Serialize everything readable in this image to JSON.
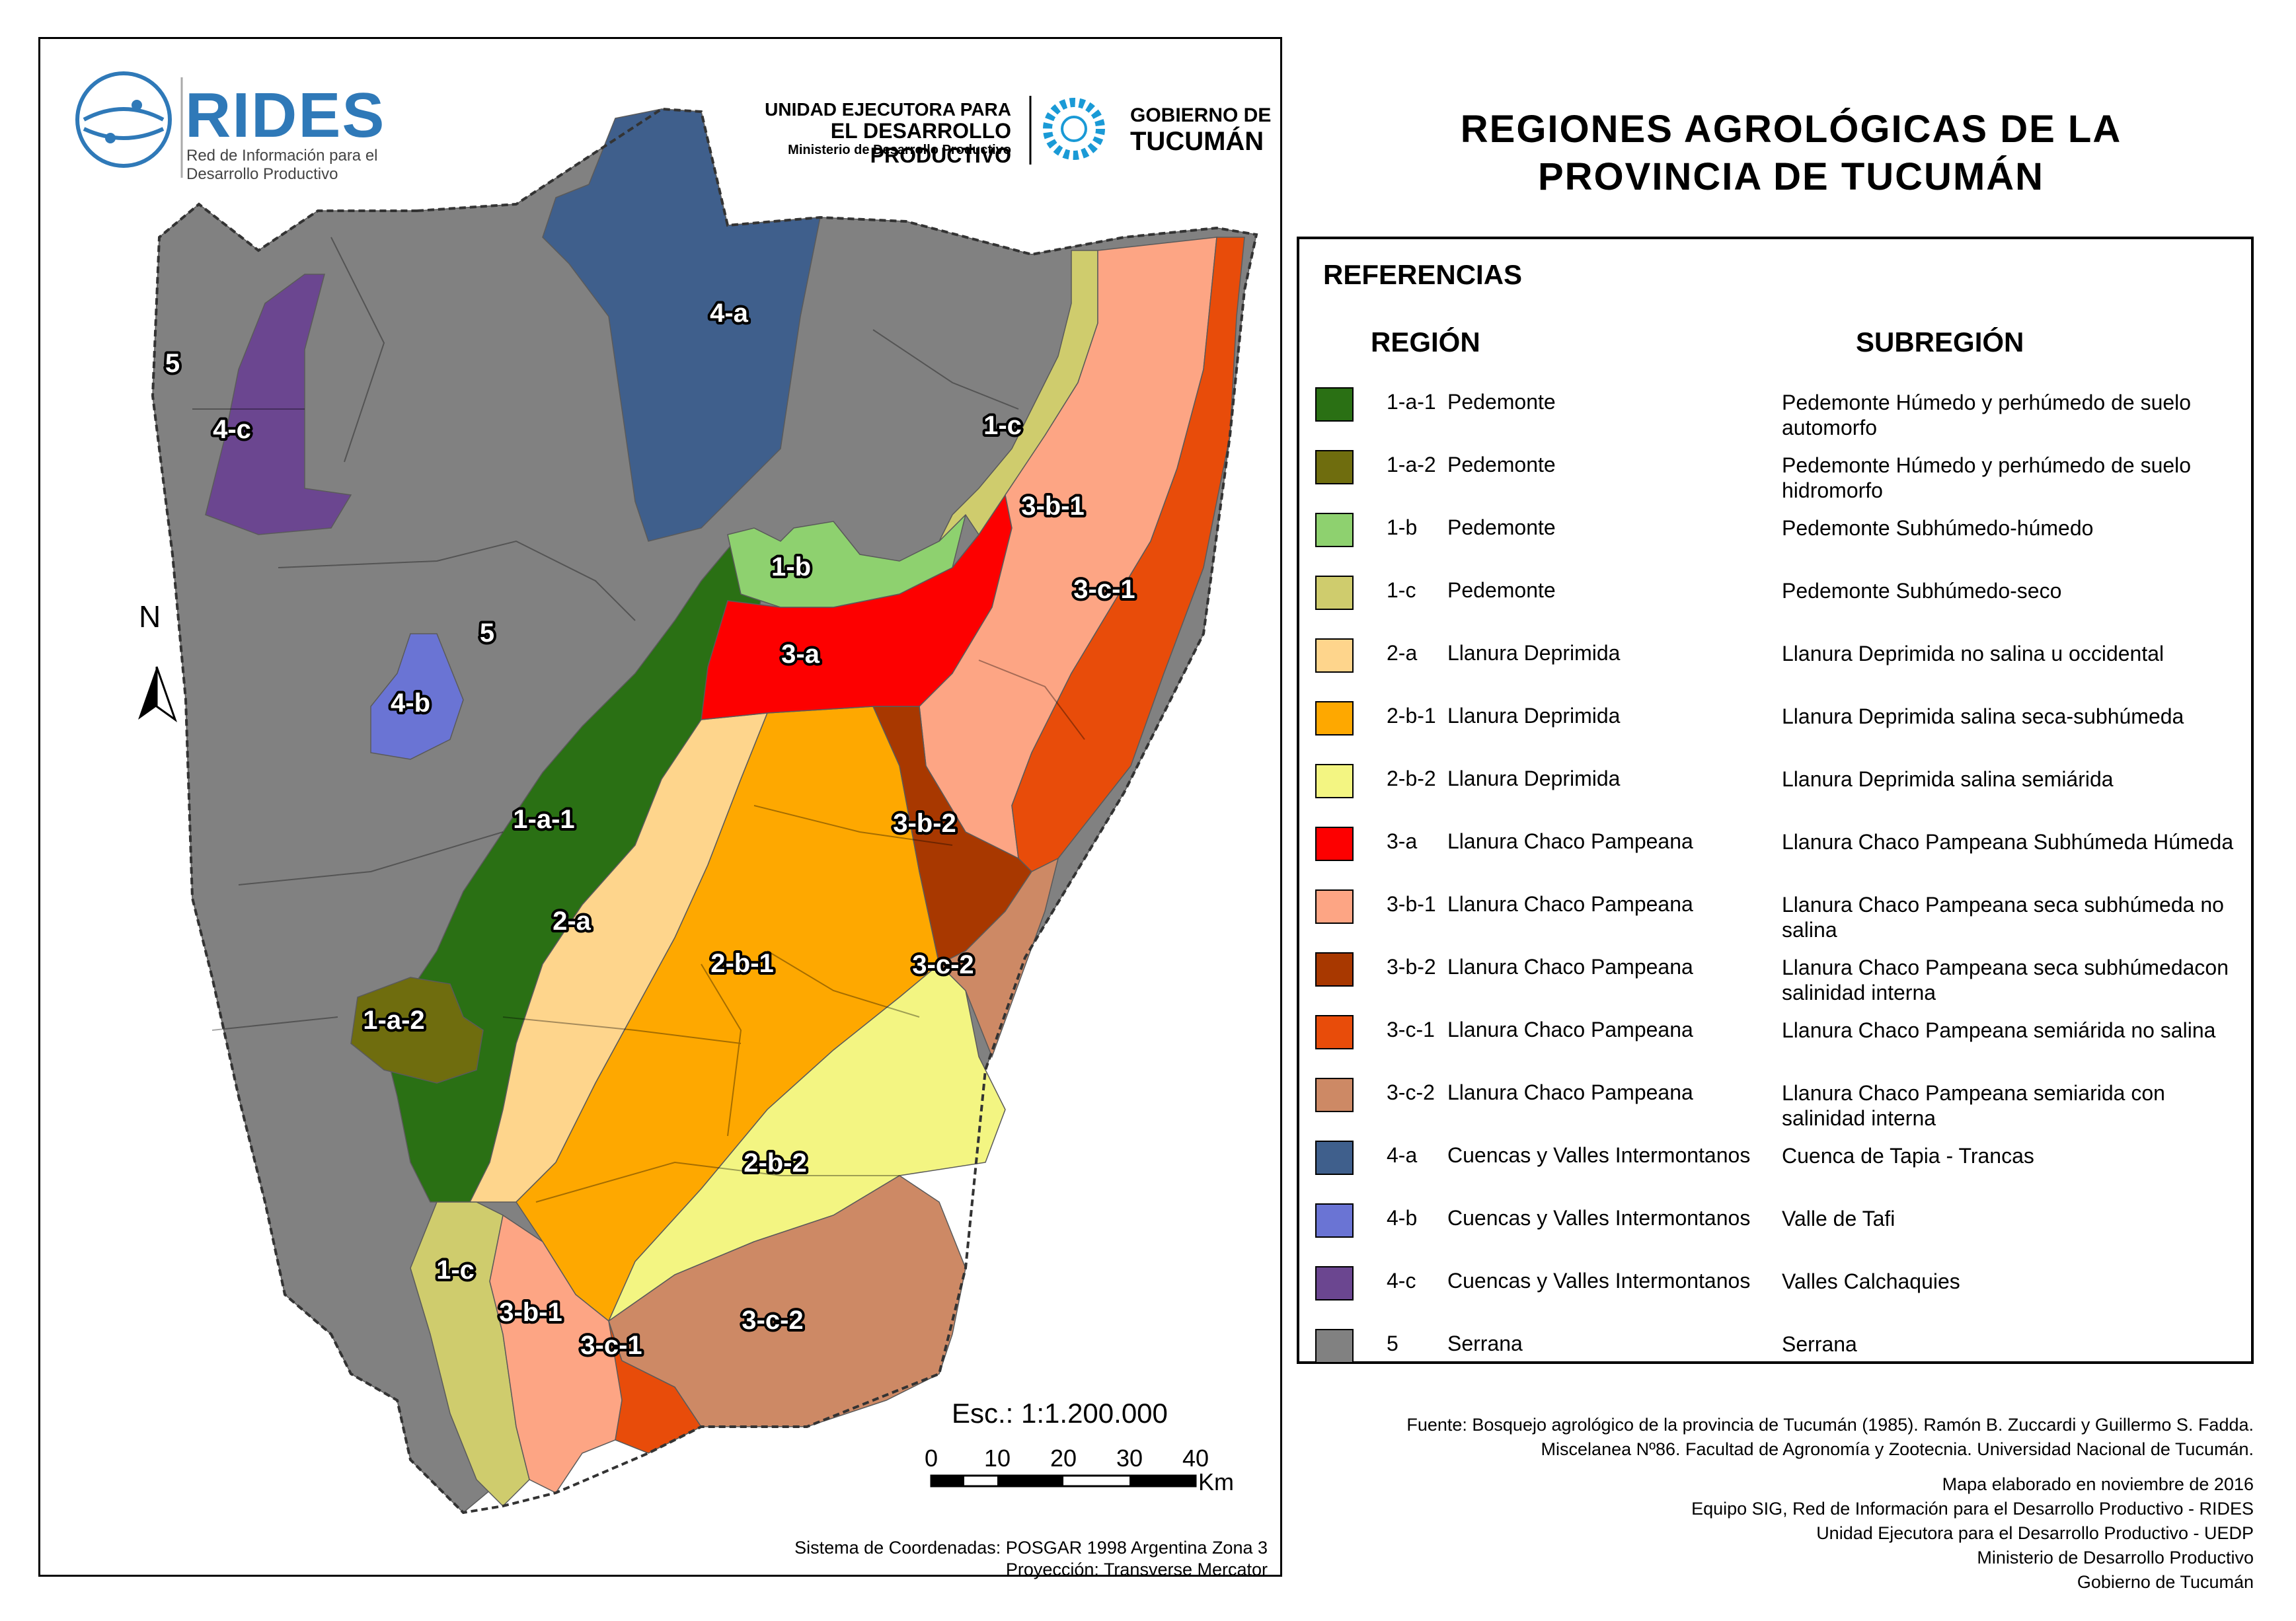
{
  "title": {
    "line1": "REGIONES AGROLÓGICAS DE LA",
    "line2": "PROVINCIA DE TUCUMÁN"
  },
  "logos": {
    "rides_name": "RIDES",
    "rides_subtitle_1": "Red de Información para el",
    "rides_subtitle_2": "Desarrollo Productivo",
    "uedp_line1": "UNIDAD EJECUTORA PARA",
    "uedp_line2": "EL DESARROLLO PRODUCTIVO",
    "uedp_line3": "Ministerio de Desarrollo Productivo",
    "gobierno_line1": "GOBIERNO DE",
    "gobierno_line2": "TUCUMÁN",
    "rides_color": "#2f79b8",
    "gobierno_color": "#1a9ad6"
  },
  "legend": {
    "heading": "REFERENCIAS",
    "col_region": "REGIÓN",
    "col_subregion": "SUBREGIÓN",
    "items": [
      {
        "code": "1-a-1",
        "region": "Pedemonte",
        "subregion": "Pedemonte Húmedo y perhúmedo de suelo automorfo",
        "color": "#2a7014"
      },
      {
        "code": "1-a-2",
        "region": "Pedemonte",
        "subregion": "Pedemonte Húmedo y perhúmedo de suelo hidromorfo",
        "color": "#6f6d0e"
      },
      {
        "code": "1-b",
        "region": "Pedemonte",
        "subregion": "Pedemonte Subhúmedo-húmedo",
        "color": "#8ed16f"
      },
      {
        "code": "1-c",
        "region": "Pedemonte",
        "subregion": "Pedemonte Subhúmedo-seco",
        "color": "#cfcc6d"
      },
      {
        "code": "2-a",
        "region": "Llanura Deprimida",
        "subregion": "Llanura Deprimida no salina u occidental",
        "color": "#fed58c"
      },
      {
        "code": "2-b-1",
        "region": "Llanura Deprimida",
        "subregion": "Llanura Deprimida salina seca-subhúmeda",
        "color": "#fea800"
      },
      {
        "code": "2-b-2",
        "region": "Llanura Deprimida",
        "subregion": "Llanura Deprimida salina semiárida",
        "color": "#f3f582"
      },
      {
        "code": "3-a",
        "region": "Llanura Chaco Pampeana",
        "subregion": "Llanura Chaco Pampeana Subhúmeda Húmeda",
        "color": "#fd0000"
      },
      {
        "code": "3-b-1",
        "region": "Llanura Chaco Pampeana",
        "subregion": "Llanura Chaco Pampeana seca subhúmeda no salina",
        "color": "#fda584"
      },
      {
        "code": "3-b-2",
        "region": "Llanura Chaco Pampeana",
        "subregion": "Llanura Chaco Pampeana seca subhúmedacon salinidad interna",
        "color": "#a83800"
      },
      {
        "code": "3-c-1",
        "region": "Llanura Chaco Pampeana",
        "subregion": "Llanura Chaco Pampeana semiárida no salina",
        "color": "#e84c0a"
      },
      {
        "code": "3-c-2",
        "region": "Llanura Chaco Pampeana",
        "subregion": "Llanura Chaco Pampeana semiarida con salinidad interna",
        "color": "#cd8965"
      },
      {
        "code": "4-a",
        "region": "Cuencas y Valles Intermontanos",
        "subregion": "Cuenca de Tapia - Trancas",
        "color": "#3f5f8c"
      },
      {
        "code": "4-b",
        "region": "Cuencas y Valles Intermontanos",
        "subregion": "Valle de Tafi",
        "color": "#6a74d4"
      },
      {
        "code": "4-c",
        "region": "Cuencas y Valles Intermontanos",
        "subregion": "Valles Calchaquies",
        "color": "#6b4690"
      },
      {
        "code": "5",
        "region": "Serrana",
        "subregion": "Serrana",
        "color": "#818181"
      }
    ]
  },
  "map": {
    "labels": [
      "4-a",
      "5",
      "4-c",
      "1-c",
      "3-b-1",
      "1-b",
      "3-c-1",
      "5",
      "3-a",
      "4-b",
      "3-b-2",
      "1-a-1",
      "2-a",
      "2-b-1",
      "3-c-2",
      "1-a-2",
      "2-b-2",
      "1-c",
      "3-b-1",
      "3-c-1",
      "3-c-2"
    ],
    "north_label": "N"
  },
  "scale": {
    "text": "Esc.: 1:1.200.000",
    "ticks": [
      "0",
      "10",
      "20",
      "30",
      "40"
    ],
    "unit": "Km"
  },
  "coordinate_system": "Sistema de Coordenadas: POSGAR 1998 Argentina Zona 3",
  "projection": "Proyección: Transverse Mercator",
  "source": {
    "line1": "Fuente: Bosquejo agrológico de la provincia de Tucumán (1985). Ramón B. Zuccardi y Guillermo S. Fadda.",
    "line2": "Miscelanea Nº86. Facultad de Agronomía y Zootecnia. Universidad Nacional de Tucumán."
  },
  "credits": {
    "line1": "Mapa elaborado en noviembre de 2016",
    "line2": "Equipo SIG, Red de Información para el Desarrollo Productivo - RIDES",
    "line3": "Unidad Ejecutora para el Desarrollo Productivo - UEDP",
    "line4": "Ministerio de Desarrollo Productivo",
    "line5": "Gobierno de Tucumán"
  }
}
